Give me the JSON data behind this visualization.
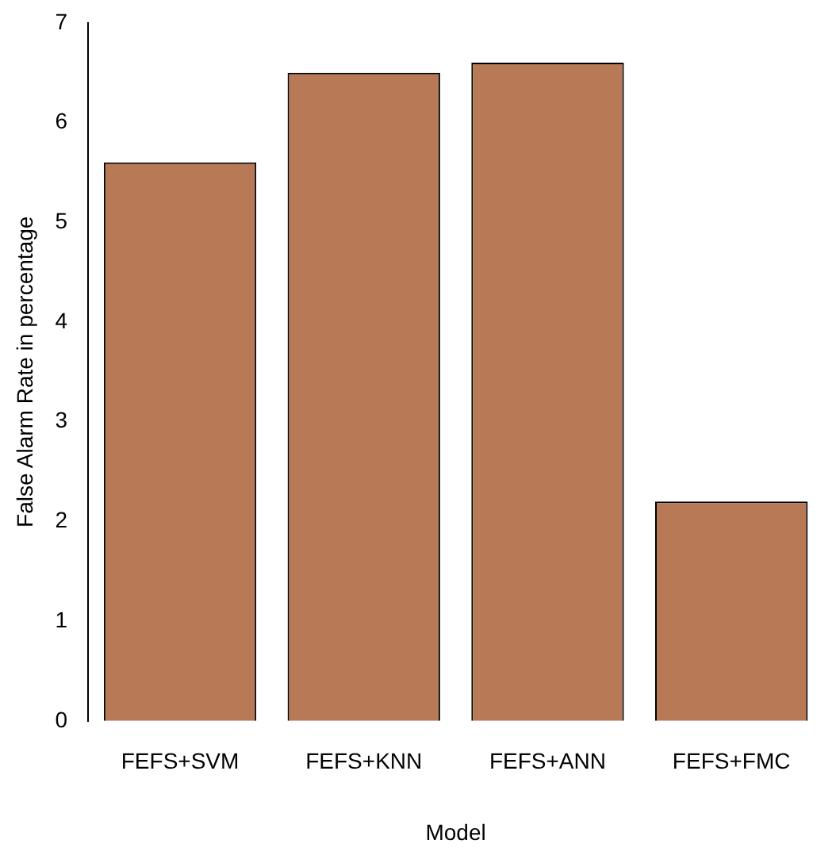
{
  "chart_data": {
    "type": "bar",
    "xlabel": "Model",
    "ylabel": "False Alarm Rate in percentage",
    "categories": [
      "FEFS+SVM",
      "FEFS+KNN",
      "FEFS+ANN",
      "FEFS+FMC"
    ],
    "values": [
      5.6,
      6.5,
      6.6,
      2.2
    ],
    "color": "#b87a56",
    "ylim": [
      0,
      7
    ],
    "yticks": [
      0,
      1,
      2,
      3,
      4,
      5,
      6,
      7
    ],
    "grid": false,
    "legend": false
  }
}
